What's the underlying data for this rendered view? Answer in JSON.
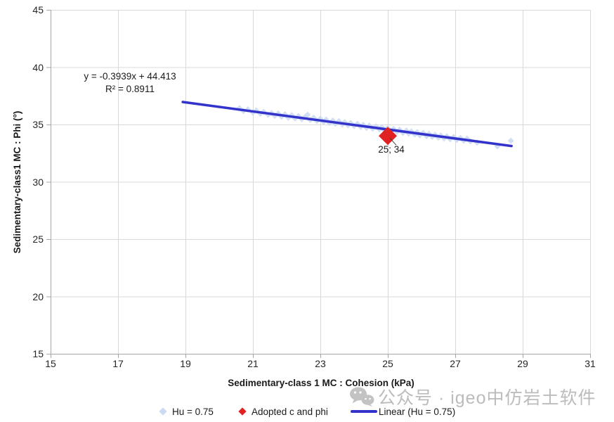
{
  "chart_data": {
    "type": "scatter",
    "title": "",
    "xlabel": "Sedimentary-class 1 MC : Cohesion (kPa)",
    "ylabel": "Sedimentary-class1 MC : Phi (°)",
    "xlim": [
      15,
      31
    ],
    "ylim": [
      15,
      45
    ],
    "x_ticks": [
      15,
      17,
      19,
      21,
      23,
      25,
      27,
      29,
      31
    ],
    "y_ticks": [
      15,
      20,
      25,
      30,
      35,
      40,
      45
    ],
    "grid": true,
    "legend_position": "bottom",
    "series": [
      {
        "name": "Hu = 0.75",
        "type": "scatter",
        "marker": "diamond",
        "color": "#ccdaf2",
        "points": [
          [
            20.6,
            36.42
          ],
          [
            20.72,
            36.18
          ],
          [
            20.85,
            36.31
          ],
          [
            21.0,
            36.04
          ],
          [
            21.1,
            36.23
          ],
          [
            21.22,
            35.94
          ],
          [
            21.32,
            36.1
          ],
          [
            21.45,
            35.86
          ],
          [
            21.55,
            36.0
          ],
          [
            21.65,
            35.76
          ],
          [
            21.75,
            35.96
          ],
          [
            21.85,
            35.68
          ],
          [
            21.95,
            35.88
          ],
          [
            22.05,
            35.6
          ],
          [
            22.15,
            35.81
          ],
          [
            22.25,
            35.54
          ],
          [
            22.35,
            35.73
          ],
          [
            22.45,
            35.47
          ],
          [
            22.55,
            35.66
          ],
          [
            22.62,
            35.85
          ],
          [
            22.7,
            35.4
          ],
          [
            22.8,
            35.58
          ],
          [
            22.9,
            35.31
          ],
          [
            23.0,
            35.5
          ],
          [
            23.1,
            35.22
          ],
          [
            23.17,
            35.43
          ],
          [
            23.27,
            35.14
          ],
          [
            23.37,
            35.34
          ],
          [
            23.45,
            35.07
          ],
          [
            23.55,
            35.28
          ],
          [
            23.65,
            35.0
          ],
          [
            23.72,
            35.2
          ],
          [
            23.82,
            34.94
          ],
          [
            23.9,
            35.13
          ],
          [
            24.0,
            34.87
          ],
          [
            24.1,
            35.06
          ],
          [
            24.2,
            34.79
          ],
          [
            24.27,
            34.98
          ],
          [
            24.37,
            34.71
          ],
          [
            24.45,
            34.9
          ],
          [
            24.55,
            34.64
          ],
          [
            24.65,
            34.83
          ],
          [
            24.75,
            34.57
          ],
          [
            24.82,
            34.76
          ],
          [
            24.9,
            34.49
          ],
          [
            25.0,
            34.68
          ],
          [
            25.1,
            34.42
          ],
          [
            25.17,
            34.61
          ],
          [
            25.27,
            34.35
          ],
          [
            25.35,
            34.54
          ],
          [
            25.45,
            34.28
          ],
          [
            25.55,
            34.47
          ],
          [
            25.62,
            34.21
          ],
          [
            25.7,
            34.4
          ],
          [
            25.8,
            34.13
          ],
          [
            25.87,
            34.33
          ],
          [
            25.95,
            34.06
          ],
          [
            26.05,
            34.26
          ],
          [
            26.15,
            33.99
          ],
          [
            26.22,
            34.18
          ],
          [
            26.32,
            33.93
          ],
          [
            26.4,
            34.11
          ],
          [
            26.5,
            33.86
          ],
          [
            26.57,
            34.04
          ],
          [
            26.67,
            33.79
          ],
          [
            26.75,
            33.97
          ],
          [
            26.85,
            33.72
          ],
          [
            26.95,
            33.9
          ],
          [
            27.05,
            33.66
          ],
          [
            27.15,
            33.83
          ],
          [
            27.25,
            33.59
          ],
          [
            27.35,
            33.77
          ],
          [
            27.45,
            33.53
          ],
          [
            27.65,
            33.42
          ],
          [
            28.25,
            33.1
          ],
          [
            28.65,
            33.58
          ]
        ]
      },
      {
        "name": "Adopted c and phi",
        "type": "scatter",
        "marker": "diamond",
        "color": "#e02222",
        "points": [
          [
            25,
            34
          ]
        ],
        "data_label": "25; 34"
      },
      {
        "name": "Linear (Hu = 0.75)",
        "type": "line",
        "color": "#3333cc",
        "slope": -0.3939,
        "intercept": 44.413,
        "x_range": [
          18.92,
          28.67
        ],
        "equation": "y = -0.3939x + 44.413",
        "r_squared": "R² = 0.8911"
      }
    ]
  },
  "watermark": {
    "icon": "wechat-icon",
    "text": "公众号 · igeo中仿岩土软件",
    "color": "#bcbcbc"
  },
  "colors": {
    "background": "#ffffff",
    "grid": "#d9d9d9",
    "axis": "#a6a6a6",
    "tick_text": "#262626",
    "scatter": "#ccdaf2",
    "adopted_point": "#e02222",
    "trendline": "#3333cc",
    "leader_line": "#404040"
  }
}
